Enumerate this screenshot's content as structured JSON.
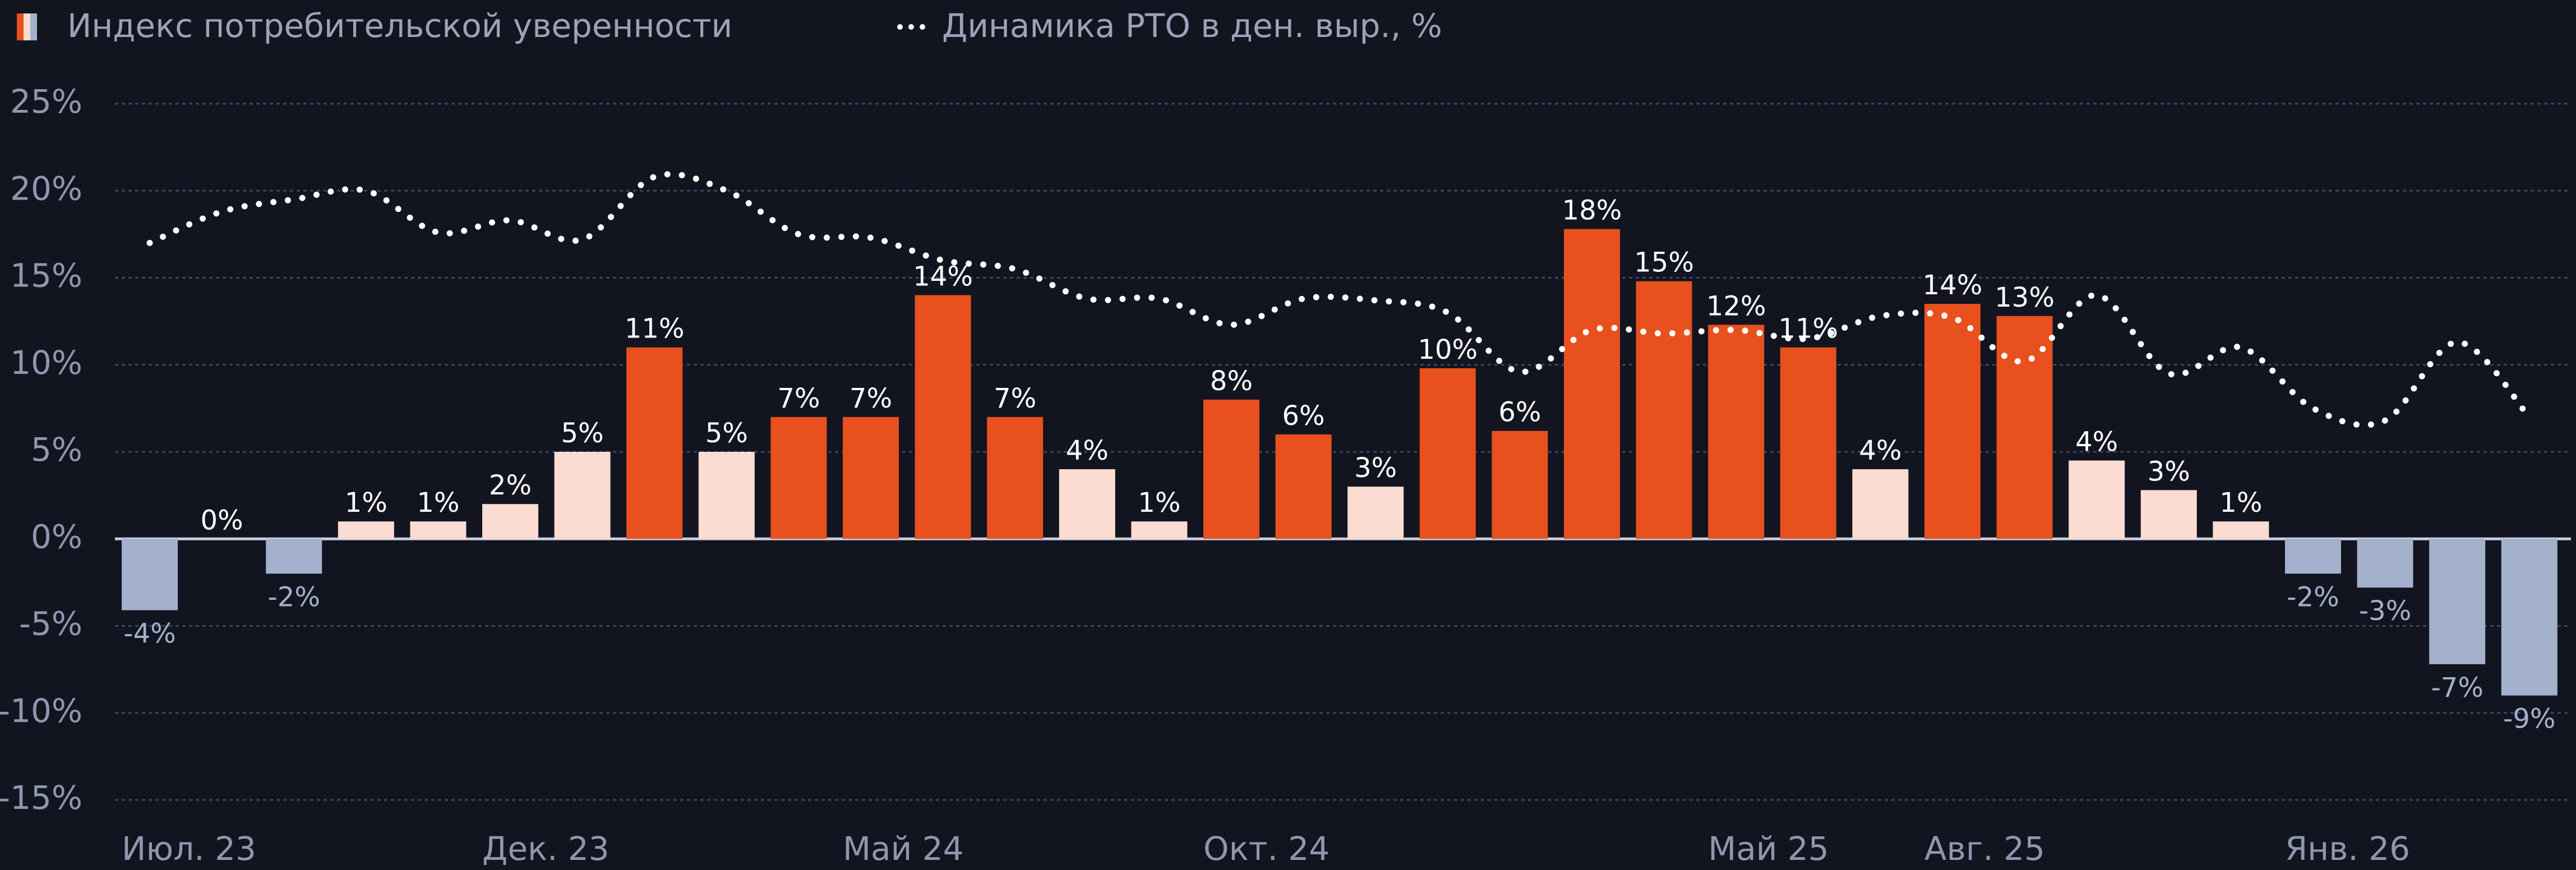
{
  "chart_data": {
    "type": "bar",
    "categories": [
      "Июл. 23",
      null,
      null,
      null,
      null,
      "Дек. 23",
      null,
      null,
      null,
      null,
      "Май 24",
      null,
      null,
      null,
      null,
      "Окт. 24",
      null,
      null,
      null,
      null,
      null,
      null,
      "Май 25",
      null,
      null,
      "Авг. 25",
      null,
      null,
      null,
      null,
      "Янв. 26",
      null,
      null,
      null
    ],
    "series": [
      {
        "name": "Индекс потребительской уверенности",
        "type": "bar",
        "values": [
          -4.1,
          0,
          -2,
          1,
          1,
          2,
          5,
          11,
          5,
          7,
          7,
          14,
          7,
          4,
          1,
          8,
          6,
          3,
          9.8,
          6.2,
          17.8,
          14.8,
          12.3,
          11,
          4,
          13.5,
          12.8,
          4.5,
          2.8,
          1,
          -2,
          -2.8,
          -7.2,
          -9
        ],
        "value_labels": [
          "-4%",
          "0%",
          "-2%",
          "1%",
          "1%",
          "2%",
          "5%",
          "11%",
          "5%",
          "7%",
          "7%",
          "14%",
          "7%",
          "4%",
          "1%",
          "8%",
          "6%",
          "3%",
          "10%",
          "6%",
          "18%",
          "15%",
          "12%",
          "11%",
          "4%",
          "14%",
          "13%",
          "4%",
          "3%",
          "1%",
          "-2%",
          "-3%",
          "-7%",
          "-9%"
        ],
        "colors": [
          "#a3b1cc",
          "#a3b1cc",
          "#a3b1cc",
          "#fbdcd3",
          "#fbdcd3",
          "#fbdcd3",
          "#fbdcd3",
          "#e8501e",
          "#fbdcd3",
          "#e8501e",
          "#e8501e",
          "#e8501e",
          "#e8501e",
          "#fbdcd3",
          "#fbdcd3",
          "#e8501e",
          "#e8501e",
          "#fbdcd3",
          "#e8501e",
          "#e8501e",
          "#e8501e",
          "#e8501e",
          "#e8501e",
          "#e8501e",
          "#fbdcd3",
          "#e8501e",
          "#e8501e",
          "#fbdcd3",
          "#fbdcd3",
          "#fbdcd3",
          "#a3b1cc",
          "#a3b1cc",
          "#a3b1cc",
          "#a3b1cc"
        ]
      },
      {
        "name": "Динамика РТО в ден. выр., %",
        "type": "line",
        "color": "#ffffff",
        "values": [
          17,
          18.8,
          19.5,
          20,
          17.6,
          18.3,
          17.2,
          20.8,
          20,
          17.5,
          17.3,
          16,
          15.5,
          13.8,
          13.8,
          12.3,
          13.8,
          13.7,
          13,
          9.6,
          12,
          11.8,
          12,
          11.5,
          12.8,
          12.7,
          10.2,
          14,
          9.5,
          11,
          7.5,
          6.8,
          11.3,
          7
        ]
      }
    ],
    "ylim": [
      -15,
      25
    ],
    "yticks": [
      {
        "value": -15,
        "label": "-15%"
      },
      {
        "value": -10,
        "label": "-10%"
      },
      {
        "value": -5,
        "label": "-5%"
      },
      {
        "value": 0,
        "label": "0%"
      },
      {
        "value": 5,
        "label": "5%"
      },
      {
        "value": 10,
        "label": "10%"
      },
      {
        "value": 15,
        "label": "15%"
      },
      {
        "value": 20,
        "label": "20%"
      },
      {
        "value": 25,
        "label": "25%"
      }
    ],
    "grid": true,
    "legend": "top-left"
  }
}
